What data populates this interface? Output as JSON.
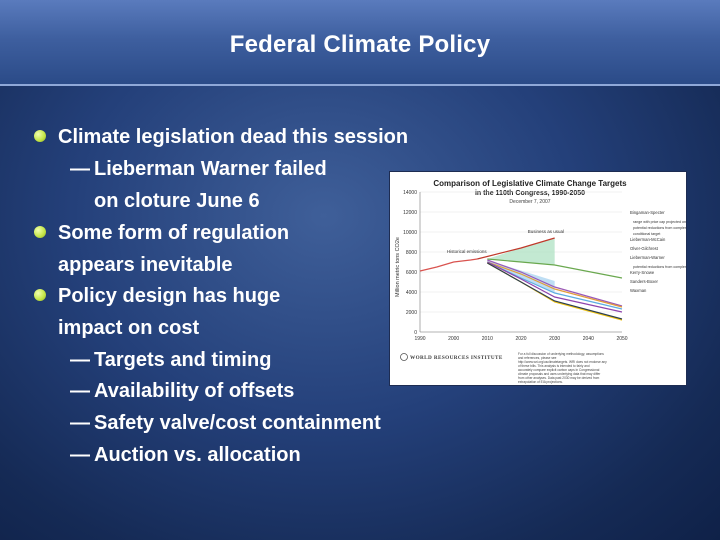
{
  "slide": {
    "title": "Federal Climate Policy",
    "bullets": [
      {
        "level": 1,
        "text": "Climate legislation dead this session"
      },
      {
        "level": 2,
        "text": "Lieberman Warner failed"
      },
      {
        "level": 2,
        "text": "on cloture June 6",
        "continuation": true
      },
      {
        "level": 1,
        "text": "Some form of regulation"
      },
      {
        "level": 1,
        "text": "appears inevitable",
        "continuation": true
      },
      {
        "level": 1,
        "text": "Policy design has huge"
      },
      {
        "level": 1,
        "text": "impact on cost",
        "continuation": true
      },
      {
        "level": 2,
        "text": "Targets and timing"
      },
      {
        "level": 2,
        "text": "Availability of offsets"
      },
      {
        "level": 2,
        "text": "Safety valve/cost containment"
      },
      {
        "level": 2,
        "text": "Auction vs. allocation"
      }
    ],
    "dash_symbol": "—",
    "colors": {
      "bullet": "#c6e74a",
      "title_band": "#3e5f9f",
      "background": "#1a3266"
    }
  },
  "chart_data": {
    "type": "line",
    "title": "Comparison of Legislative Climate Change Targets",
    "subtitle": "in the 110th Congress, 1990-2050",
    "date": "December 7, 2007",
    "ylabel": "Million metric tons CO2e",
    "xlabel": "",
    "x_ticks": [
      "1990",
      "2000",
      "2010",
      "2020",
      "2030",
      "2040",
      "2050"
    ],
    "y_ticks": [
      "0",
      "2000",
      "4000",
      "6000",
      "8000",
      "10000",
      "12000",
      "14000"
    ],
    "xlim": [
      1990,
      2050
    ],
    "ylim": [
      0,
      14000
    ],
    "annotations": [
      "Business as usual",
      "Historical emissions"
    ],
    "legend_position": "right",
    "legend": [
      "Bingaman-Specter",
      "range with price cap projected only through 2030",
      "potential reductions from complementary policies",
      "conditional target",
      "Lieberman-McCain",
      "Olver-Gilchrest",
      "Lieberman-Warner",
      "potential reductions from complementary policies",
      "Kerry-Snowe",
      "Sanders-Boxer",
      "Waxman"
    ],
    "source_logo": "WORLD RESOURCES INSTITUTE",
    "footnote": "For a full discussion of underlying methodology, assumptions and references, please see http://www.wri.org/usclimatetargets. WRI does not endorse any of these bills. This analysis is intended to fairly and accurately compare explicit carbon caps in Congressional climate proposals and uses underlying data that may differ from other analyses. Data past 2030 may be derived from extrapolation of EIA projections.",
    "series": [
      {
        "name": "Historical emissions",
        "x": [
          1990,
          1995,
          2000,
          2005,
          2007
        ],
        "y": [
          6100,
          6500,
          7000,
          7200,
          7300
        ],
        "color": "#d9534f"
      },
      {
        "name": "Business as usual",
        "x": [
          2007,
          2020,
          2030
        ],
        "y": [
          7300,
          8400,
          9400
        ],
        "color": "#c0392b"
      },
      {
        "name": "Bingaman-Specter",
        "x": [
          2010,
          2020,
          2030,
          2050
        ],
        "y": [
          7300,
          7000,
          6700,
          5400
        ],
        "color": "#6aa84f"
      },
      {
        "name": "Lieberman-McCain",
        "x": [
          2010,
          2020,
          2030,
          2050
        ],
        "y": [
          7200,
          6000,
          4500,
          2600
        ],
        "color": "#9b59b6"
      },
      {
        "name": "Olver-Gilchrest",
        "x": [
          2010,
          2020,
          2030,
          2050
        ],
        "y": [
          7000,
          5800,
          4300,
          2500
        ],
        "color": "#e39d3a"
      },
      {
        "name": "Lieberman-Warner",
        "x": [
          2010,
          2020,
          2030,
          2050
        ],
        "y": [
          7000,
          5400,
          3900,
          2300
        ],
        "color": "#5dade2"
      },
      {
        "name": "Kerry-Snowe",
        "x": [
          2010,
          2020,
          2030,
          2050
        ],
        "y": [
          7000,
          5300,
          3500,
          2000
        ],
        "color": "#8e44ad"
      },
      {
        "name": "Sanders-Boxer",
        "x": [
          2010,
          2020,
          2030,
          2050
        ],
        "y": [
          6900,
          5000,
          3000,
          1200
        ],
        "color": "#f1c40f"
      },
      {
        "name": "Waxman",
        "x": [
          2010,
          2020,
          2030,
          2050
        ],
        "y": [
          6900,
          5000,
          3100,
          1300
        ],
        "color": "#2c3e50"
      }
    ]
  }
}
